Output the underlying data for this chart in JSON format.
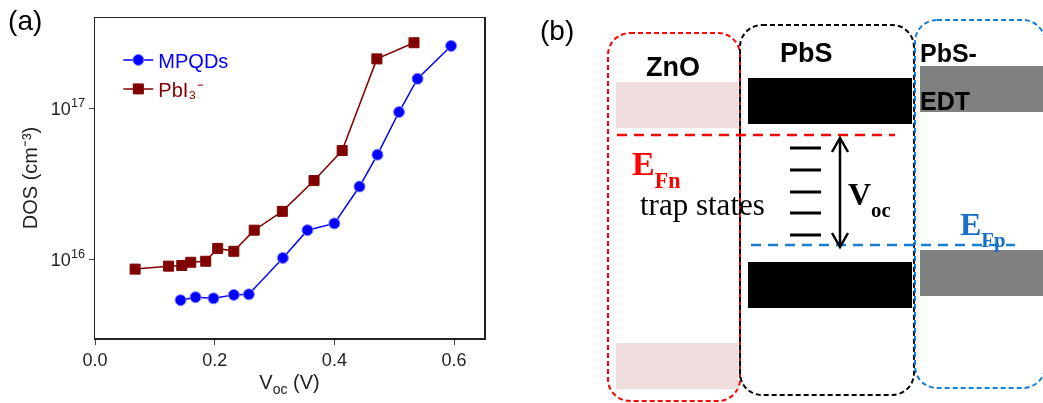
{
  "chart_data": [
    {
      "type": "line",
      "title": "(a)",
      "xlabel": "V$_{oc}$ (V)",
      "ylabel": "DOS (cm⁻³)",
      "log": "y",
      "xlim": [
        0,
        0.65
      ],
      "xticks": [
        {
          "value": 0,
          "label": "0.0"
        },
        0.2,
        0.4,
        0.6
      ],
      "ylim": [
        3000000000000000.0,
        4e+17
      ],
      "yticks": [
        {
          "value": 1e+16,
          "label": "10$^{16}$"
        },
        {
          "value": 1e+17,
          "label": "10$^{17}$"
        }
      ],
      "grid": false,
      "legend": "top left",
      "series": [
        {
          "name": "MPQDs",
          "color": "#0000ff",
          "marker": "circle",
          "x": [
            0.143,
            0.168,
            0.198,
            0.232,
            0.257,
            0.314,
            0.355,
            0.4,
            0.442,
            0.472,
            0.508,
            0.539,
            0.595
          ],
          "values": [
            5350000000000000.0,
            5600000000000000.0,
            5500000000000000.0,
            5800000000000000.0,
            5850000000000000.0,
            1.02e+16,
            1.56e+16,
            1.73e+16,
            3.04e+16,
            4.95e+16,
            9.5e+16,
            1.58e+17,
            2.61e+17
          ]
        },
        {
          "name": "PbI₃⁻",
          "color": "#800000",
          "marker": "square",
          "x": [
            0.067,
            0.123,
            0.145,
            0.16,
            0.185,
            0.205,
            0.232,
            0.266,
            0.313,
            0.366,
            0.413,
            0.471,
            0.533
          ],
          "values": [
            8600000000000000.0,
            9000000000000000.0,
            9100000000000000.0,
            9550000000000000.0,
            9700000000000000.0,
            1.18e+16,
            1.13e+16,
            1.56e+16,
            2.08e+16,
            3.33e+16,
            5.27e+16,
            2.14e+17,
            2.74e+17
          ]
        }
      ]
    },
    {
      "type": "other",
      "title": "(b)",
      "annotations": [
        "ZnO",
        "PbS",
        "PbS-EDT",
        "E$_{Fn}$",
        "trap states",
        "V$_{oc}$",
        "E$_{Fp}$"
      ]
    }
  ]
}
